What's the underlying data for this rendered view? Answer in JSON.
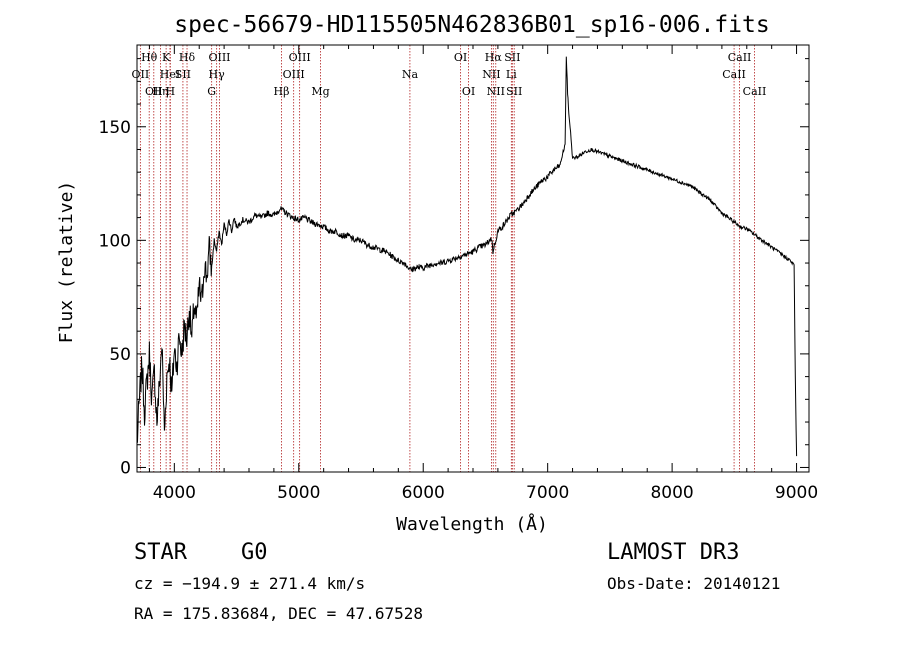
{
  "chart_data": {
    "type": "line",
    "title": "spec-56679-HD115505N462836B01_sp16-006.fits",
    "xlabel": "Wavelength (Å)",
    "ylabel": "Flux (relative)",
    "xlim": [
      3700,
      9100
    ],
    "ylim": [
      -2,
      186
    ],
    "xticks": [
      4000,
      5000,
      6000,
      7000,
      8000,
      9000
    ],
    "xtick_labels": [
      "4000",
      "5000",
      "6000",
      "7000",
      "8000",
      "9000"
    ],
    "yticks": [
      0,
      50,
      100,
      150
    ],
    "ytick_labels": [
      "0",
      "50",
      "100",
      "150"
    ],
    "grid": false,
    "legend": "none",
    "series": [
      {
        "name": "flux",
        "x": [
          3700,
          3720,
          3740,
          3760,
          3780,
          3800,
          3820,
          3840,
          3860,
          3880,
          3900,
          3920,
          3940,
          3960,
          3980,
          4000,
          4020,
          4040,
          4060,
          4080,
          4100,
          4120,
          4140,
          4160,
          4180,
          4200,
          4220,
          4240,
          4260,
          4280,
          4300,
          4320,
          4340,
          4360,
          4380,
          4400,
          4420,
          4440,
          4460,
          4480,
          4500,
          4550,
          4600,
          4650,
          4700,
          4750,
          4800,
          4850,
          4900,
          4950,
          5000,
          5050,
          5100,
          5150,
          5200,
          5250,
          5300,
          5350,
          5400,
          5450,
          5500,
          5550,
          5600,
          5650,
          5700,
          5750,
          5800,
          5850,
          5900,
          5950,
          6000,
          6050,
          6100,
          6150,
          6200,
          6250,
          6300,
          6350,
          6400,
          6450,
          6500,
          6550,
          6560,
          6600,
          6650,
          6700,
          6750,
          6800,
          6850,
          6900,
          6950,
          7000,
          7050,
          7100,
          7120,
          7140,
          7150,
          7160,
          7170,
          7180,
          7200,
          7250,
          7300,
          7350,
          7400,
          7450,
          7500,
          7550,
          7600,
          7650,
          7700,
          7750,
          7800,
          7850,
          7900,
          7950,
          8000,
          8050,
          8100,
          8150,
          8200,
          8250,
          8300,
          8350,
          8400,
          8450,
          8500,
          8550,
          8600,
          8650,
          8700,
          8750,
          8800,
          8850,
          8900,
          8950,
          8980,
          8990,
          9000
        ],
        "y": [
          10,
          30,
          45,
          25,
          38,
          50,
          30,
          42,
          20,
          36,
          55,
          15,
          40,
          48,
          32,
          52,
          45,
          58,
          50,
          62,
          57,
          70,
          56,
          72,
          64,
          80,
          72,
          90,
          84,
          96,
          88,
          100,
          95,
          104,
          98,
          107,
          103,
          109,
          104,
          110,
          106,
          109,
          108,
          111,
          110,
          112,
          111,
          114,
          112,
          110,
          109,
          110,
          108,
          107,
          106,
          104,
          104,
          102,
          102,
          100,
          100,
          98,
          97,
          96,
          95,
          93,
          91,
          90,
          87,
          88,
          88,
          89,
          90,
          90,
          91,
          92,
          93,
          94,
          95,
          97,
          98,
          101,
          95,
          104,
          107,
          111,
          113,
          116,
          120,
          123,
          126,
          128,
          131,
          133,
          138,
          142,
          181,
          165,
          156,
          150,
          136,
          137,
          139,
          140,
          139,
          138,
          137,
          136,
          135,
          134,
          133,
          132,
          131,
          130,
          129,
          128,
          127,
          126,
          125,
          124,
          122,
          120,
          118,
          115,
          112,
          110,
          108,
          106,
          105,
          103,
          101,
          99,
          97,
          95,
          93,
          91,
          89,
          40,
          5
        ]
      }
    ],
    "lines": [
      {
        "name": "OII-3727",
        "wavelength": 3727,
        "label": "OII",
        "row": 2
      },
      {
        "name": "H-theta",
        "wavelength": 3798,
        "label": "Hθ",
        "row": 1
      },
      {
        "name": "OII-3835",
        "wavelength": 3835,
        "label": "OII",
        "row": 3
      },
      {
        "name": "H-eta",
        "wavelength": 3889,
        "label": "Hη",
        "row": 3
      },
      {
        "name": "K",
        "wavelength": 3934,
        "label": "K",
        "row": 1
      },
      {
        "name": "HeI",
        "wavelength": 3965,
        "label": "HeI",
        "row": 2
      },
      {
        "name": "H",
        "wavelength": 3968,
        "label": "H",
        "row": 3
      },
      {
        "name": "SII-4069",
        "wavelength": 4069,
        "label": "SII",
        "row": 2
      },
      {
        "name": "H-delta",
        "wavelength": 4102,
        "label": "Hδ",
        "row": 1
      },
      {
        "name": "G",
        "wavelength": 4300,
        "label": "G",
        "row": 3
      },
      {
        "name": "H-gamma",
        "wavelength": 4340,
        "label": "Hγ",
        "row": 2
      },
      {
        "name": "OIII-4363",
        "wavelength": 4363,
        "label": "OIII",
        "row": 1
      },
      {
        "name": "H-beta",
        "wavelength": 4861,
        "label": "Hβ",
        "row": 3
      },
      {
        "name": "OIII-4959",
        "wavelength": 4959,
        "label": "OIII",
        "row": 2
      },
      {
        "name": "OIII-5007",
        "wavelength": 5007,
        "label": "OIII",
        "row": 1
      },
      {
        "name": "Mg",
        "wavelength": 5175,
        "label": "Mg",
        "row": 3
      },
      {
        "name": "Na",
        "wavelength": 5893,
        "label": "Na",
        "row": 2
      },
      {
        "name": "OI-6300",
        "wavelength": 6300,
        "label": "OI",
        "row": 1
      },
      {
        "name": "OI-6364",
        "wavelength": 6364,
        "label": "OI",
        "row": 3
      },
      {
        "name": "NII-6548",
        "wavelength": 6548,
        "label": "NII",
        "row": 2
      },
      {
        "name": "H-alpha",
        "wavelength": 6563,
        "label": "Hα",
        "row": 1
      },
      {
        "name": "NII-6583",
        "wavelength": 6583,
        "label": "NII",
        "row": 3
      },
      {
        "name": "SII-6716",
        "wavelength": 6716,
        "label": "SII",
        "row": 1
      },
      {
        "name": "Li",
        "wavelength": 6708,
        "label": "Li",
        "row": 2
      },
      {
        "name": "SII-6731",
        "wavelength": 6731,
        "label": "SII",
        "row": 3
      },
      {
        "name": "CaII-8498",
        "wavelength": 8498,
        "label": "CaII",
        "row": 2
      },
      {
        "name": "CaII-8542",
        "wavelength": 8542,
        "label": "CaII",
        "row": 1
      },
      {
        "name": "CaII-8662",
        "wavelength": 8662,
        "label": "CaII",
        "row": 3
      }
    ]
  },
  "info": {
    "class": "STAR",
    "subclass": "G0",
    "survey": "LAMOST DR3",
    "redshift": "cz = −194.9 ± 271.4 km/s",
    "obs_date": "Obs-Date: 20140121",
    "coords": "RA = 175.83684, DEC =  47.67528"
  }
}
